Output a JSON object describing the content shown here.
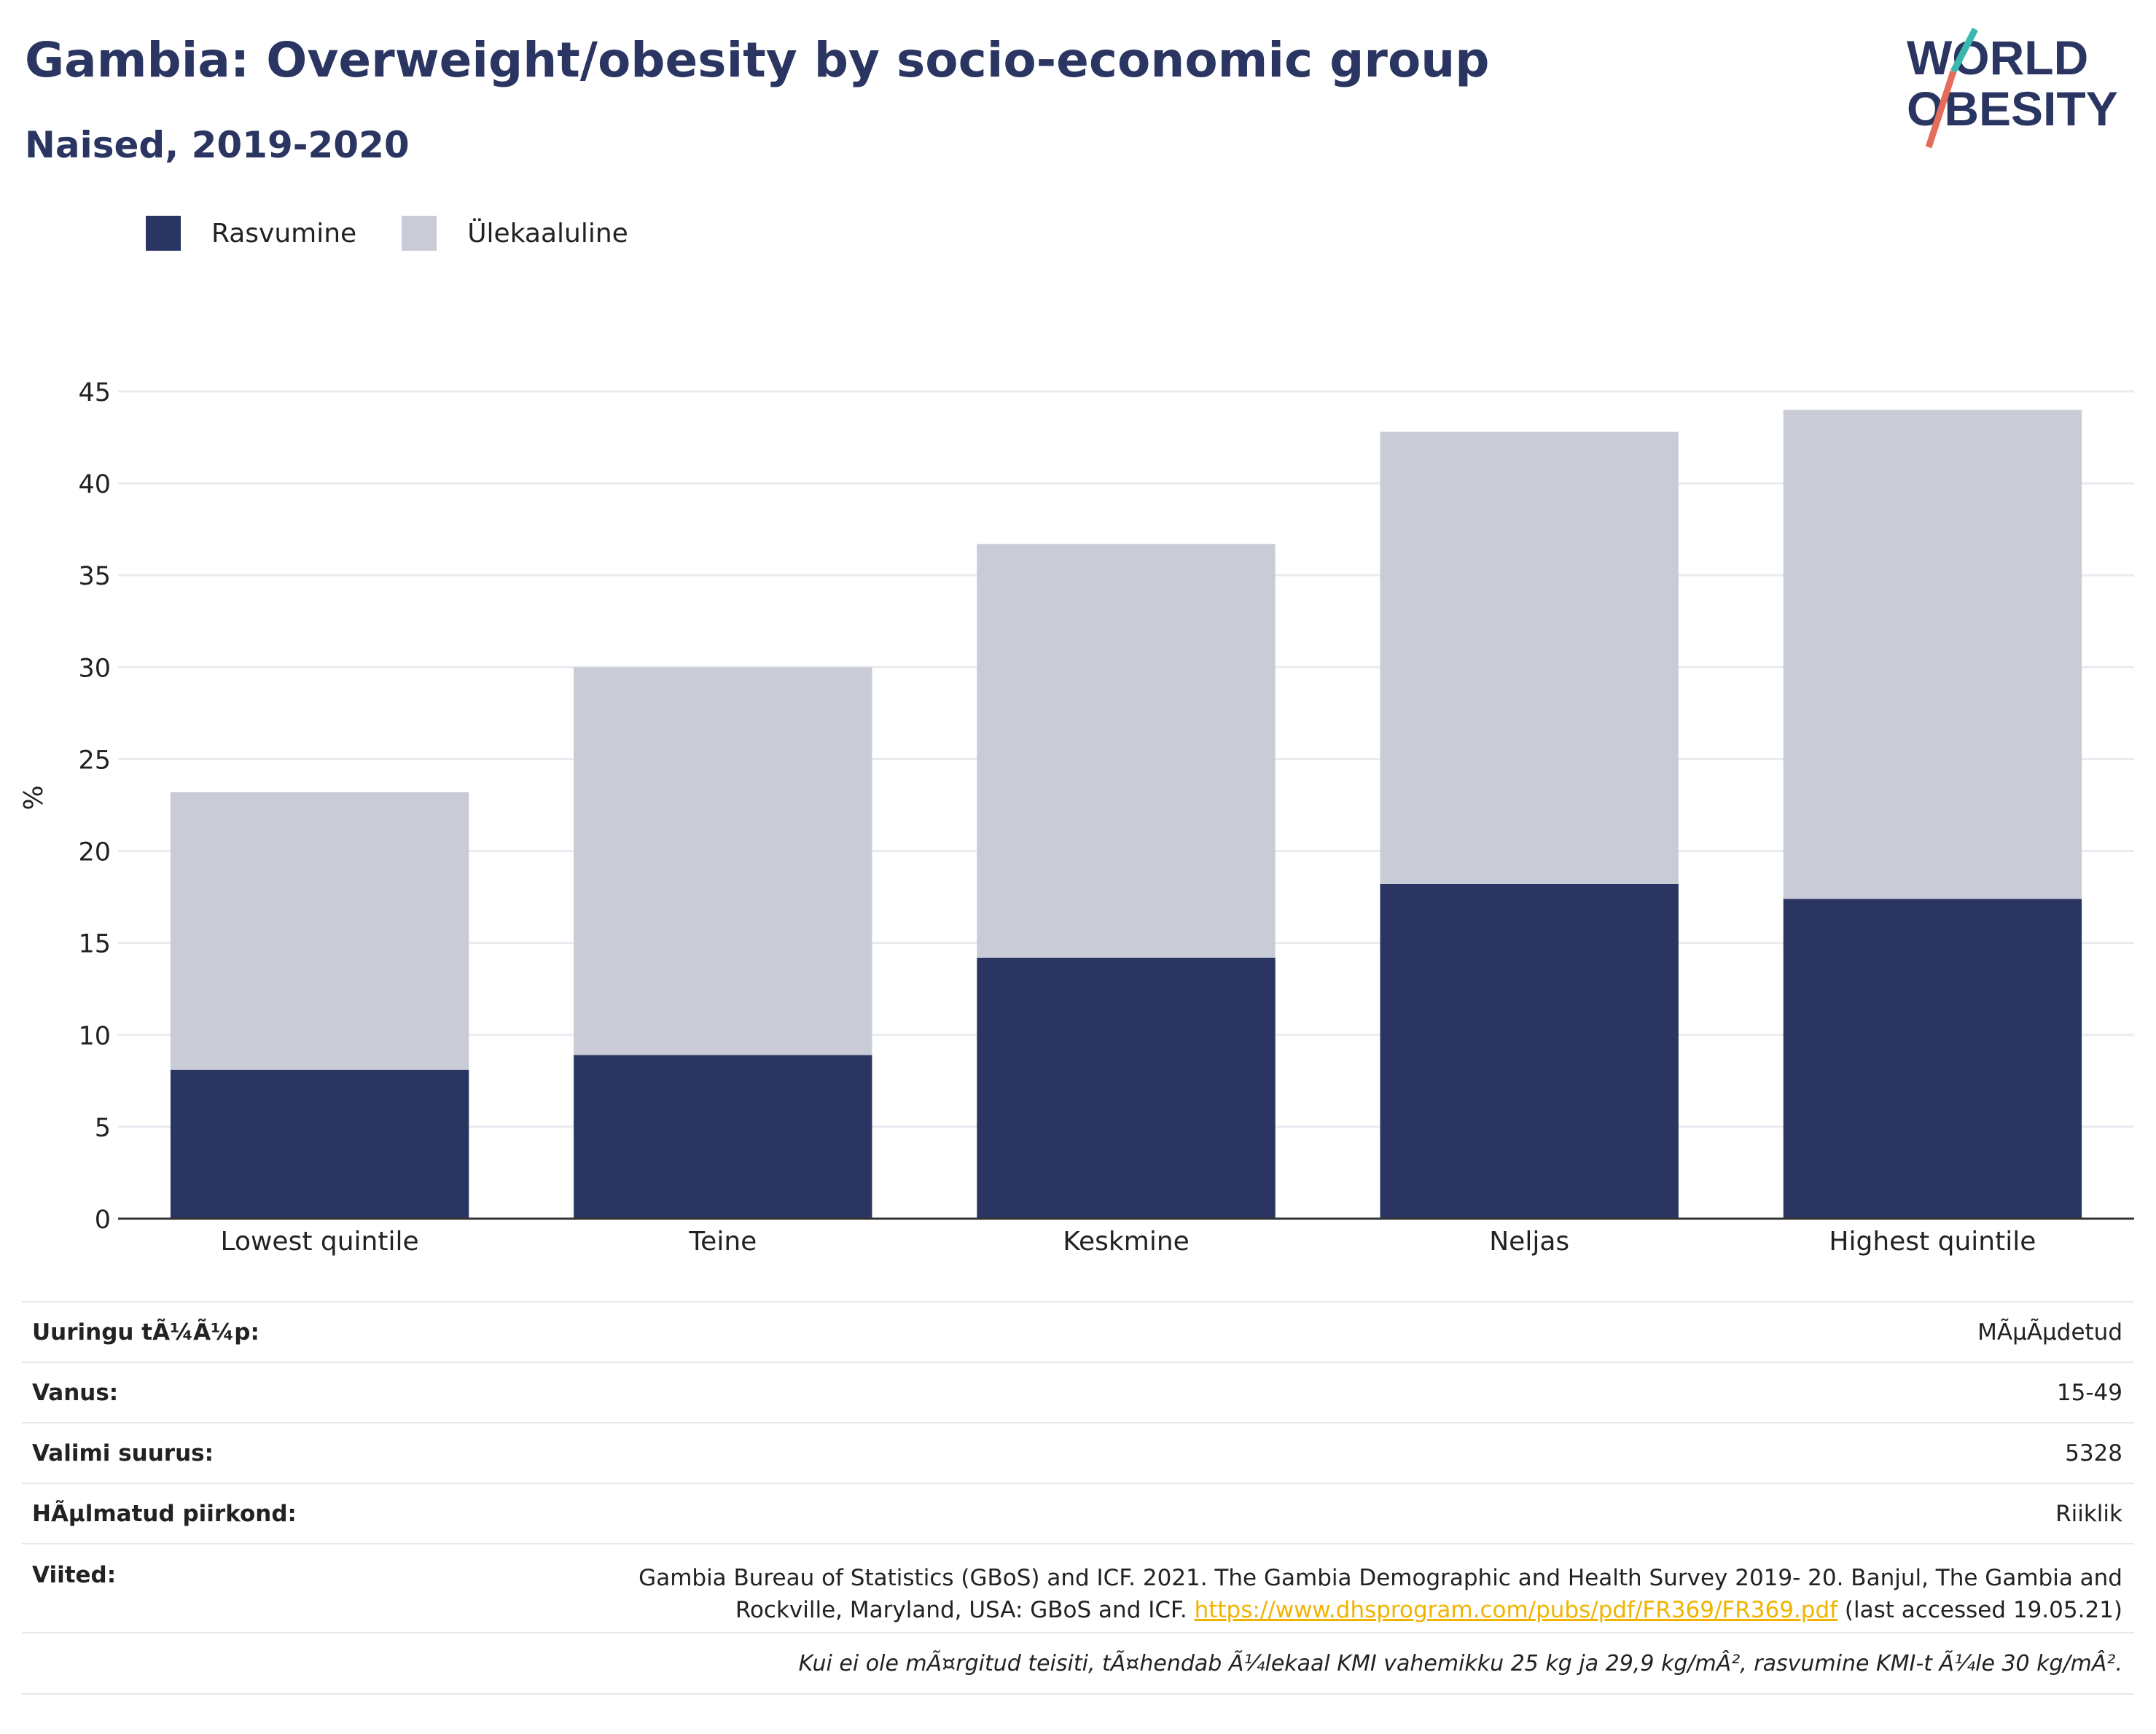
{
  "header": {
    "title": "Gambia: Overweight/obesity by socio-economic group",
    "subtitle": "Naised, 2019-2020"
  },
  "logo": {
    "line1": "WORLD",
    "line2": "OBESITY"
  },
  "legend": [
    {
      "label": "Rasvumine",
      "color": "#2a3561"
    },
    {
      "label": "Ülekaaluline",
      "color": "#c9cbd6"
    }
  ],
  "chart_data": {
    "type": "bar",
    "stacked": true,
    "categories": [
      "Lowest quintile",
      "Teine",
      "Keskmine",
      "Neljas",
      "Highest quintile"
    ],
    "series": [
      {
        "name": "Rasvumine",
        "values": [
          8.1,
          8.9,
          14.2,
          18.2,
          17.4
        ],
        "color": "#2a3561"
      },
      {
        "name": "Ülekaaluline",
        "values": [
          15.1,
          21.1,
          22.5,
          24.6,
          26.6
        ],
        "color": "#c9cbd6"
      }
    ],
    "ylabel": "%",
    "xlabel": "",
    "ylim": [
      0,
      45
    ],
    "yticks": [
      0,
      5,
      10,
      15,
      20,
      25,
      30,
      35,
      40,
      45
    ],
    "grid": true,
    "legend_position": "top-left"
  },
  "meta": {
    "survey_type": {
      "label": "Uuringu tÃ¼Ã¼p:",
      "value": "MÃµÃµdetud"
    },
    "age": {
      "label": "Vanus:",
      "value": "15-49"
    },
    "sample_size": {
      "label": "Valimi suurus:",
      "value": "5328"
    },
    "area": {
      "label": "HÃµlmatud piirkond:",
      "value": "Riiklik"
    },
    "references": {
      "label": "Viited:",
      "text1": "Gambia Bureau of Statistics (GBoS) and ICF. 2021. The Gambia Demographic and Health Survey 2019- 20. Banjul, The Gambia and Rockville, Maryland, USA: GBoS and ICF.",
      "link": "https://www.dhsprogram.com/pubs/pdf/FR369/FR369.pdf",
      "text2": "(last accessed 19.05.21)"
    },
    "note": "Kui ei ole mÃ¤rgitud teisiti, tÃ¤hendab Ã¼lekaal KMI vahemikku 25 kg ja 29,9 kg/mÂ², rasvumine KMI-t Ã¼le 30 kg/mÂ²."
  }
}
